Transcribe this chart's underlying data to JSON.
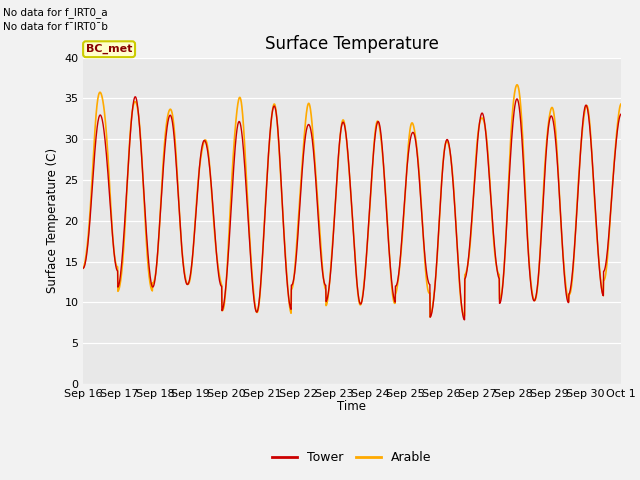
{
  "title": "Surface Temperature",
  "ylabel": "Surface Temperature (C)",
  "xlabel": "Time",
  "xlabels": [
    "Sep 16",
    "Sep 17",
    "Sep 18",
    "Sep 19",
    "Sep 20",
    "Sep 21",
    "Sep 22",
    "Sep 23",
    "Sep 24",
    "Sep 25",
    "Sep 26",
    "Sep 27",
    "Sep 28",
    "Sep 29",
    "Sep 30",
    "Oct 1"
  ],
  "ylim": [
    0,
    40
  ],
  "yticks": [
    0,
    5,
    10,
    15,
    20,
    25,
    30,
    35,
    40
  ],
  "bg_color": "#e8e8e8",
  "fig_color": "#f2f2f2",
  "tower_color": "#cc0000",
  "arable_color": "#ffaa00",
  "annotation_text_1": "No data for f_IRT0_a",
  "annotation_text_2": "No data for f¯IRT0¯b",
  "legend_label_text": "BC_met",
  "legend_bg": "#ffffcc",
  "legend_border": "#cccc00",
  "n_days": 15.5,
  "peaks": [
    33,
    35,
    33,
    30,
    32,
    34,
    32,
    32,
    32,
    31,
    30,
    33,
    35,
    33,
    34,
    33
  ],
  "troughs": [
    14,
    12,
    12,
    12,
    9,
    9,
    12,
    10,
    10,
    12,
    8,
    13,
    10,
    10,
    11,
    14
  ],
  "arable_peaks": [
    36,
    35,
    34,
    30,
    35,
    34,
    34,
    32,
    32,
    32,
    30,
    33,
    37,
    34,
    34,
    34
  ],
  "arable_troughs": [
    14,
    11,
    12,
    12,
    9,
    9,
    12,
    10,
    10,
    11,
    8,
    13,
    10,
    10,
    11,
    13
  ]
}
